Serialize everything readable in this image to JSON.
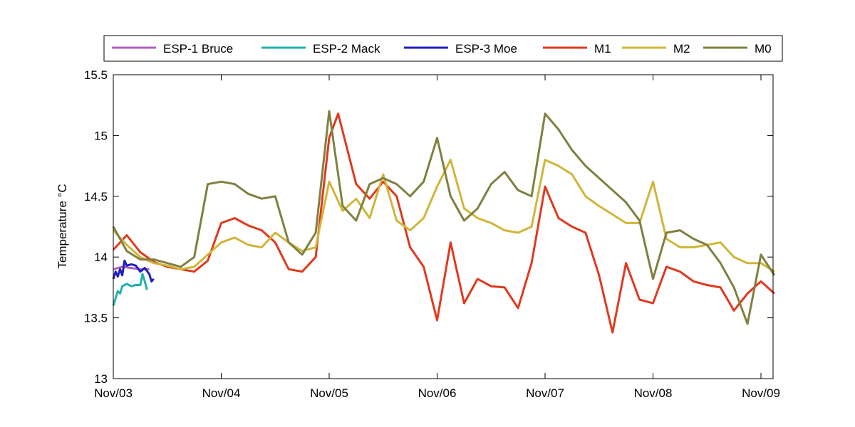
{
  "chart_data": {
    "type": "line",
    "title": "",
    "xlabel": "",
    "ylabel": "Temperature °C",
    "ylim": [
      13,
      15.5
    ],
    "xlim": [
      "Nov/03",
      "Nov/09 03:00"
    ],
    "x_ticks": [
      "Nov/03",
      "Nov/04",
      "Nov/05",
      "Nov/06",
      "Nov/07",
      "Nov/08",
      "Nov/09"
    ],
    "y_ticks": [
      "13",
      "13.5",
      "14",
      "14.5",
      "15",
      "15.5"
    ],
    "grid": false,
    "legend_position": "top",
    "series": [
      {
        "name": "ESP-1 Bruce",
        "color": "#b05fc0",
        "x": [
          "Nov/03 00:00",
          "Nov/03 02:00",
          "Nov/03 04:00",
          "Nov/03 06:00",
          "Nov/03 08:00"
        ],
        "y": [
          13.9,
          13.92,
          13.91,
          13.9,
          13.9
        ]
      },
      {
        "name": "ESP-2 Mack",
        "color": "#20b2aa",
        "x": [
          "Nov/03 00:00",
          "Nov/03 00:30",
          "Nov/03 01:00",
          "Nov/03 01:30",
          "Nov/03 02:00",
          "Nov/03 03:00",
          "Nov/03 04:00",
          "Nov/03 05:00",
          "Nov/03 06:00",
          "Nov/03 06:30",
          "Nov/03 07:00",
          "Nov/03 07:30"
        ],
        "y": [
          13.6,
          13.66,
          13.72,
          13.7,
          13.76,
          13.78,
          13.76,
          13.77,
          13.77,
          13.86,
          13.8,
          13.73
        ]
      },
      {
        "name": "ESP-3 Moe",
        "color": "#2020c0",
        "x": [
          "Nov/03 00:00",
          "Nov/03 00:30",
          "Nov/03 01:00",
          "Nov/03 01:30",
          "Nov/03 02:00",
          "Nov/03 02:30",
          "Nov/03 03:00",
          "Nov/03 04:00",
          "Nov/03 05:00",
          "Nov/03 06:00",
          "Nov/03 07:00",
          "Nov/03 08:00",
          "Nov/03 08:30",
          "Nov/03 09:00"
        ],
        "y": [
          13.82,
          13.88,
          13.84,
          13.9,
          13.85,
          13.97,
          13.93,
          13.94,
          13.93,
          13.88,
          13.91,
          13.86,
          13.8,
          13.82
        ]
      },
      {
        "name": "M1",
        "color": "#e03a1e",
        "x": [
          "Nov/03 00:00",
          "Nov/03 03:00",
          "Nov/03 06:00",
          "Nov/03 09:00",
          "Nov/03 12:00",
          "Nov/03 15:00",
          "Nov/03 18:00",
          "Nov/03 21:00",
          "Nov/04 00:00",
          "Nov/04 03:00",
          "Nov/04 06:00",
          "Nov/04 09:00",
          "Nov/04 12:00",
          "Nov/04 15:00",
          "Nov/04 18:00",
          "Nov/04 21:00",
          "Nov/05 00:00",
          "Nov/05 02:00",
          "Nov/05 06:00",
          "Nov/05 09:00",
          "Nov/05 12:00",
          "Nov/05 15:00",
          "Nov/05 18:00",
          "Nov/05 21:00",
          "Nov/06 00:00",
          "Nov/06 03:00",
          "Nov/06 06:00",
          "Nov/06 09:00",
          "Nov/06 12:00",
          "Nov/06 15:00",
          "Nov/06 18:00",
          "Nov/06 21:00",
          "Nov/07 00:00",
          "Nov/07 03:00",
          "Nov/07 06:00",
          "Nov/07 09:00",
          "Nov/07 12:00",
          "Nov/07 15:00",
          "Nov/07 18:00",
          "Nov/07 21:00",
          "Nov/08 00:00",
          "Nov/08 03:00",
          "Nov/08 06:00",
          "Nov/08 09:00",
          "Nov/08 12:00",
          "Nov/08 15:00",
          "Nov/08 18:00",
          "Nov/08 21:00",
          "Nov/09 00:00",
          "Nov/09 03:00"
        ],
        "y": [
          14.06,
          14.18,
          14.04,
          13.96,
          13.92,
          13.9,
          13.88,
          13.97,
          14.28,
          14.32,
          14.26,
          14.22,
          14.12,
          13.9,
          13.88,
          14.0,
          14.98,
          15.18,
          14.6,
          14.48,
          14.62,
          14.5,
          14.08,
          13.92,
          13.48,
          14.12,
          13.62,
          13.82,
          13.76,
          13.75,
          13.58,
          13.95,
          14.58,
          14.32,
          14.25,
          14.2,
          13.85,
          13.38,
          13.95,
          13.65,
          13.62,
          13.92,
          13.88,
          13.8,
          13.77,
          13.75,
          13.56,
          13.7,
          13.8,
          13.7
        ]
      },
      {
        "name": "M2",
        "color": "#d0b53a",
        "x": [
          "Nov/03 00:00",
          "Nov/03 03:00",
          "Nov/03 06:00",
          "Nov/03 09:00",
          "Nov/03 12:00",
          "Nov/03 15:00",
          "Nov/03 18:00",
          "Nov/03 21:00",
          "Nov/04 00:00",
          "Nov/04 03:00",
          "Nov/04 06:00",
          "Nov/04 09:00",
          "Nov/04 12:00",
          "Nov/04 15:00",
          "Nov/04 18:00",
          "Nov/04 21:00",
          "Nov/05 00:00",
          "Nov/05 03:00",
          "Nov/05 06:00",
          "Nov/05 09:00",
          "Nov/05 12:00",
          "Nov/05 15:00",
          "Nov/05 18:00",
          "Nov/05 21:00",
          "Nov/06 00:00",
          "Nov/06 03:00",
          "Nov/06 06:00",
          "Nov/06 09:00",
          "Nov/06 12:00",
          "Nov/06 15:00",
          "Nov/06 18:00",
          "Nov/06 21:00",
          "Nov/07 00:00",
          "Nov/07 03:00",
          "Nov/07 06:00",
          "Nov/07 09:00",
          "Nov/07 12:00",
          "Nov/07 15:00",
          "Nov/07 18:00",
          "Nov/07 21:00",
          "Nov/08 00:00",
          "Nov/08 03:00",
          "Nov/08 06:00",
          "Nov/08 09:00",
          "Nov/08 12:00",
          "Nov/08 15:00",
          "Nov/08 18:00",
          "Nov/08 21:00",
          "Nov/09 00:00",
          "Nov/09 03:00"
        ],
        "y": [
          14.22,
          14.1,
          14.0,
          13.95,
          13.93,
          13.9,
          13.92,
          14.02,
          14.12,
          14.16,
          14.1,
          14.08,
          14.2,
          14.12,
          14.05,
          14.08,
          14.62,
          14.38,
          14.48,
          14.32,
          14.68,
          14.3,
          14.22,
          14.32,
          14.58,
          14.8,
          14.4,
          14.32,
          14.28,
          14.22,
          14.2,
          14.25,
          14.8,
          14.75,
          14.68,
          14.5,
          14.42,
          14.35,
          14.28,
          14.28,
          14.62,
          14.15,
          14.08,
          14.08,
          14.1,
          14.12,
          14.0,
          13.95,
          13.95,
          13.88
        ]
      },
      {
        "name": "M0",
        "color": "#808040",
        "x": [
          "Nov/03 00:00",
          "Nov/03 03:00",
          "Nov/03 06:00",
          "Nov/03 09:00",
          "Nov/03 12:00",
          "Nov/03 15:00",
          "Nov/03 18:00",
          "Nov/03 21:00",
          "Nov/04 00:00",
          "Nov/04 03:00",
          "Nov/04 06:00",
          "Nov/04 09:00",
          "Nov/04 12:00",
          "Nov/04 15:00",
          "Nov/04 18:00",
          "Nov/04 21:00",
          "Nov/05 00:00",
          "Nov/05 03:00",
          "Nov/05 06:00",
          "Nov/05 09:00",
          "Nov/05 12:00",
          "Nov/05 15:00",
          "Nov/05 18:00",
          "Nov/05 21:00",
          "Nov/06 00:00",
          "Nov/06 03:00",
          "Nov/06 06:00",
          "Nov/06 09:00",
          "Nov/06 12:00",
          "Nov/06 15:00",
          "Nov/06 18:00",
          "Nov/06 21:00",
          "Nov/07 00:00",
          "Nov/07 03:00",
          "Nov/07 06:00",
          "Nov/07 09:00",
          "Nov/07 12:00",
          "Nov/07 15:00",
          "Nov/07 18:00",
          "Nov/07 21:00",
          "Nov/08 00:00",
          "Nov/08 03:00",
          "Nov/08 06:00",
          "Nov/08 09:00",
          "Nov/08 12:00",
          "Nov/08 15:00",
          "Nov/08 18:00",
          "Nov/08 21:00",
          "Nov/09 00:00",
          "Nov/09 03:00"
        ],
        "y": [
          14.25,
          14.05,
          13.98,
          13.98,
          13.95,
          13.92,
          14.0,
          14.6,
          14.62,
          14.6,
          14.52,
          14.48,
          14.5,
          14.12,
          14.02,
          14.2,
          15.2,
          14.42,
          14.3,
          14.6,
          14.65,
          14.6,
          14.5,
          14.62,
          14.98,
          14.5,
          14.3,
          14.4,
          14.6,
          14.7,
          14.55,
          14.5,
          15.18,
          15.05,
          14.88,
          14.75,
          14.65,
          14.55,
          14.45,
          14.3,
          13.82,
          14.2,
          14.22,
          14.15,
          14.1,
          13.95,
          13.75,
          13.45,
          14.02,
          13.85
        ]
      }
    ]
  }
}
